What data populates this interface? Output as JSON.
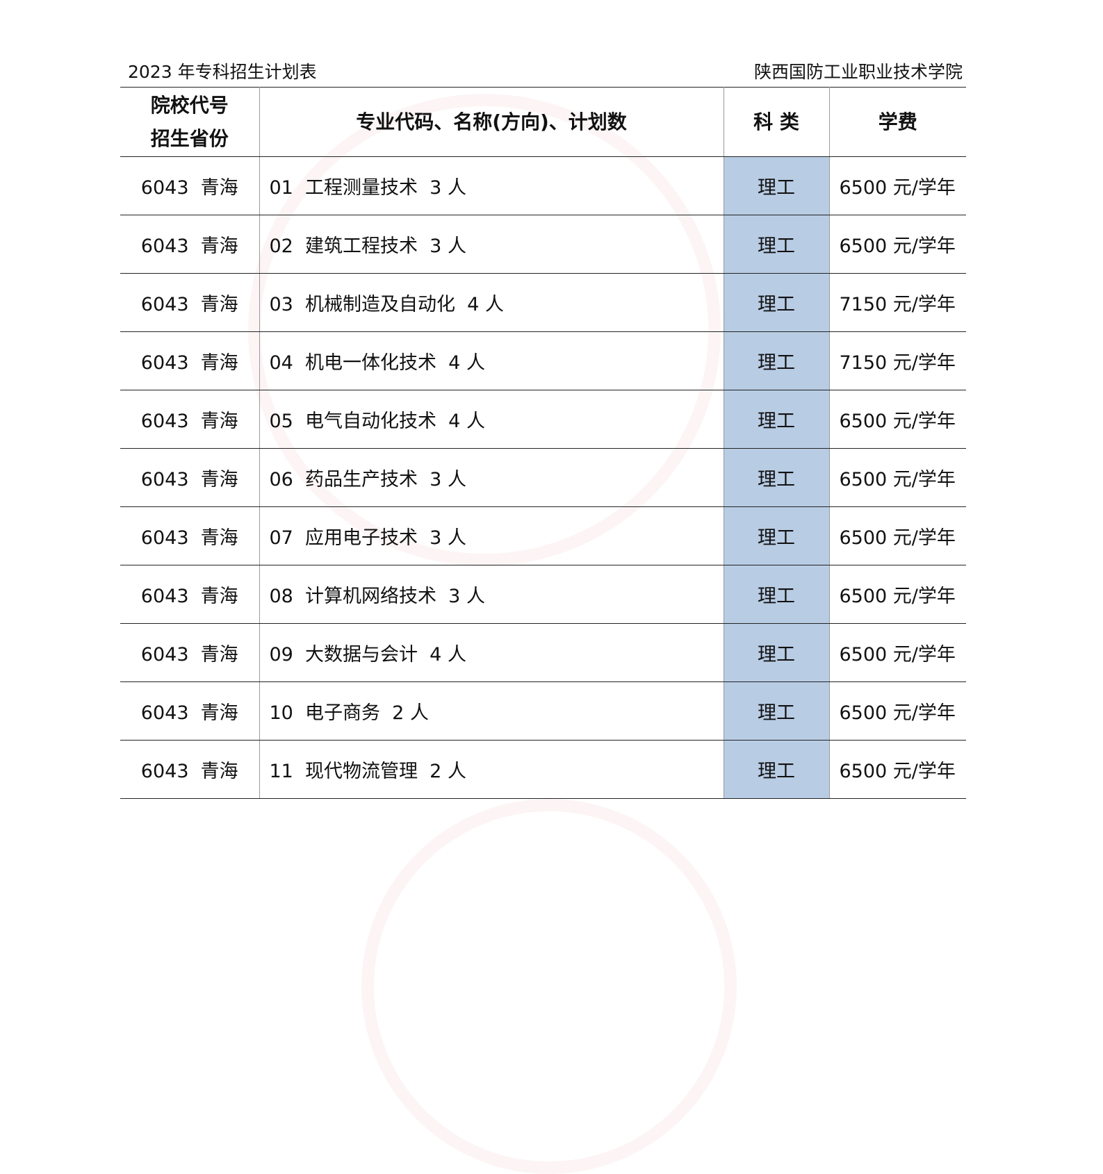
{
  "caption": {
    "title": "2023 年专科招生计划表",
    "school": "陕西国防工业职业技术学院"
  },
  "headers": {
    "col1_line1": "院校代号",
    "col1_line2": "招生省份",
    "col2": "专业代码、名称(方向)、计划数",
    "col3": "科 类",
    "col4": "学费"
  },
  "rows": [
    {
      "province": "6043  青海",
      "major": "01  工程测量技术  3 人",
      "category": "理工",
      "fee": "6500 元/学年"
    },
    {
      "province": "6043  青海",
      "major": "02  建筑工程技术  3 人",
      "category": "理工",
      "fee": "6500 元/学年"
    },
    {
      "province": "6043  青海",
      "major": "03  机械制造及自动化  4 人",
      "category": "理工",
      "fee": "7150 元/学年"
    },
    {
      "province": "6043  青海",
      "major": "04  机电一体化技术  4 人",
      "category": "理工",
      "fee": "7150 元/学年"
    },
    {
      "province": "6043  青海",
      "major": "05  电气自动化技术  4 人",
      "category": "理工",
      "fee": "6500 元/学年"
    },
    {
      "province": "6043  青海",
      "major": "06  药品生产技术  3 人",
      "category": "理工",
      "fee": "6500 元/学年"
    },
    {
      "province": "6043  青海",
      "major": "07  应用电子技术  3 人",
      "category": "理工",
      "fee": "6500 元/学年"
    },
    {
      "province": "6043  青海",
      "major": "08  计算机网络技术  3 人",
      "category": "理工",
      "fee": "6500 元/学年"
    },
    {
      "province": "6043  青海",
      "major": "09  大数据与会计  4 人",
      "category": "理工",
      "fee": "6500 元/学年"
    },
    {
      "province": "6043  青海",
      "major": "10  电子商务  2 人",
      "category": "理工",
      "fee": "6500 元/学年"
    },
    {
      "province": "6043  青海",
      "major": "11  现代物流管理  2 人",
      "category": "理工",
      "fee": "6500 元/学年"
    }
  ]
}
